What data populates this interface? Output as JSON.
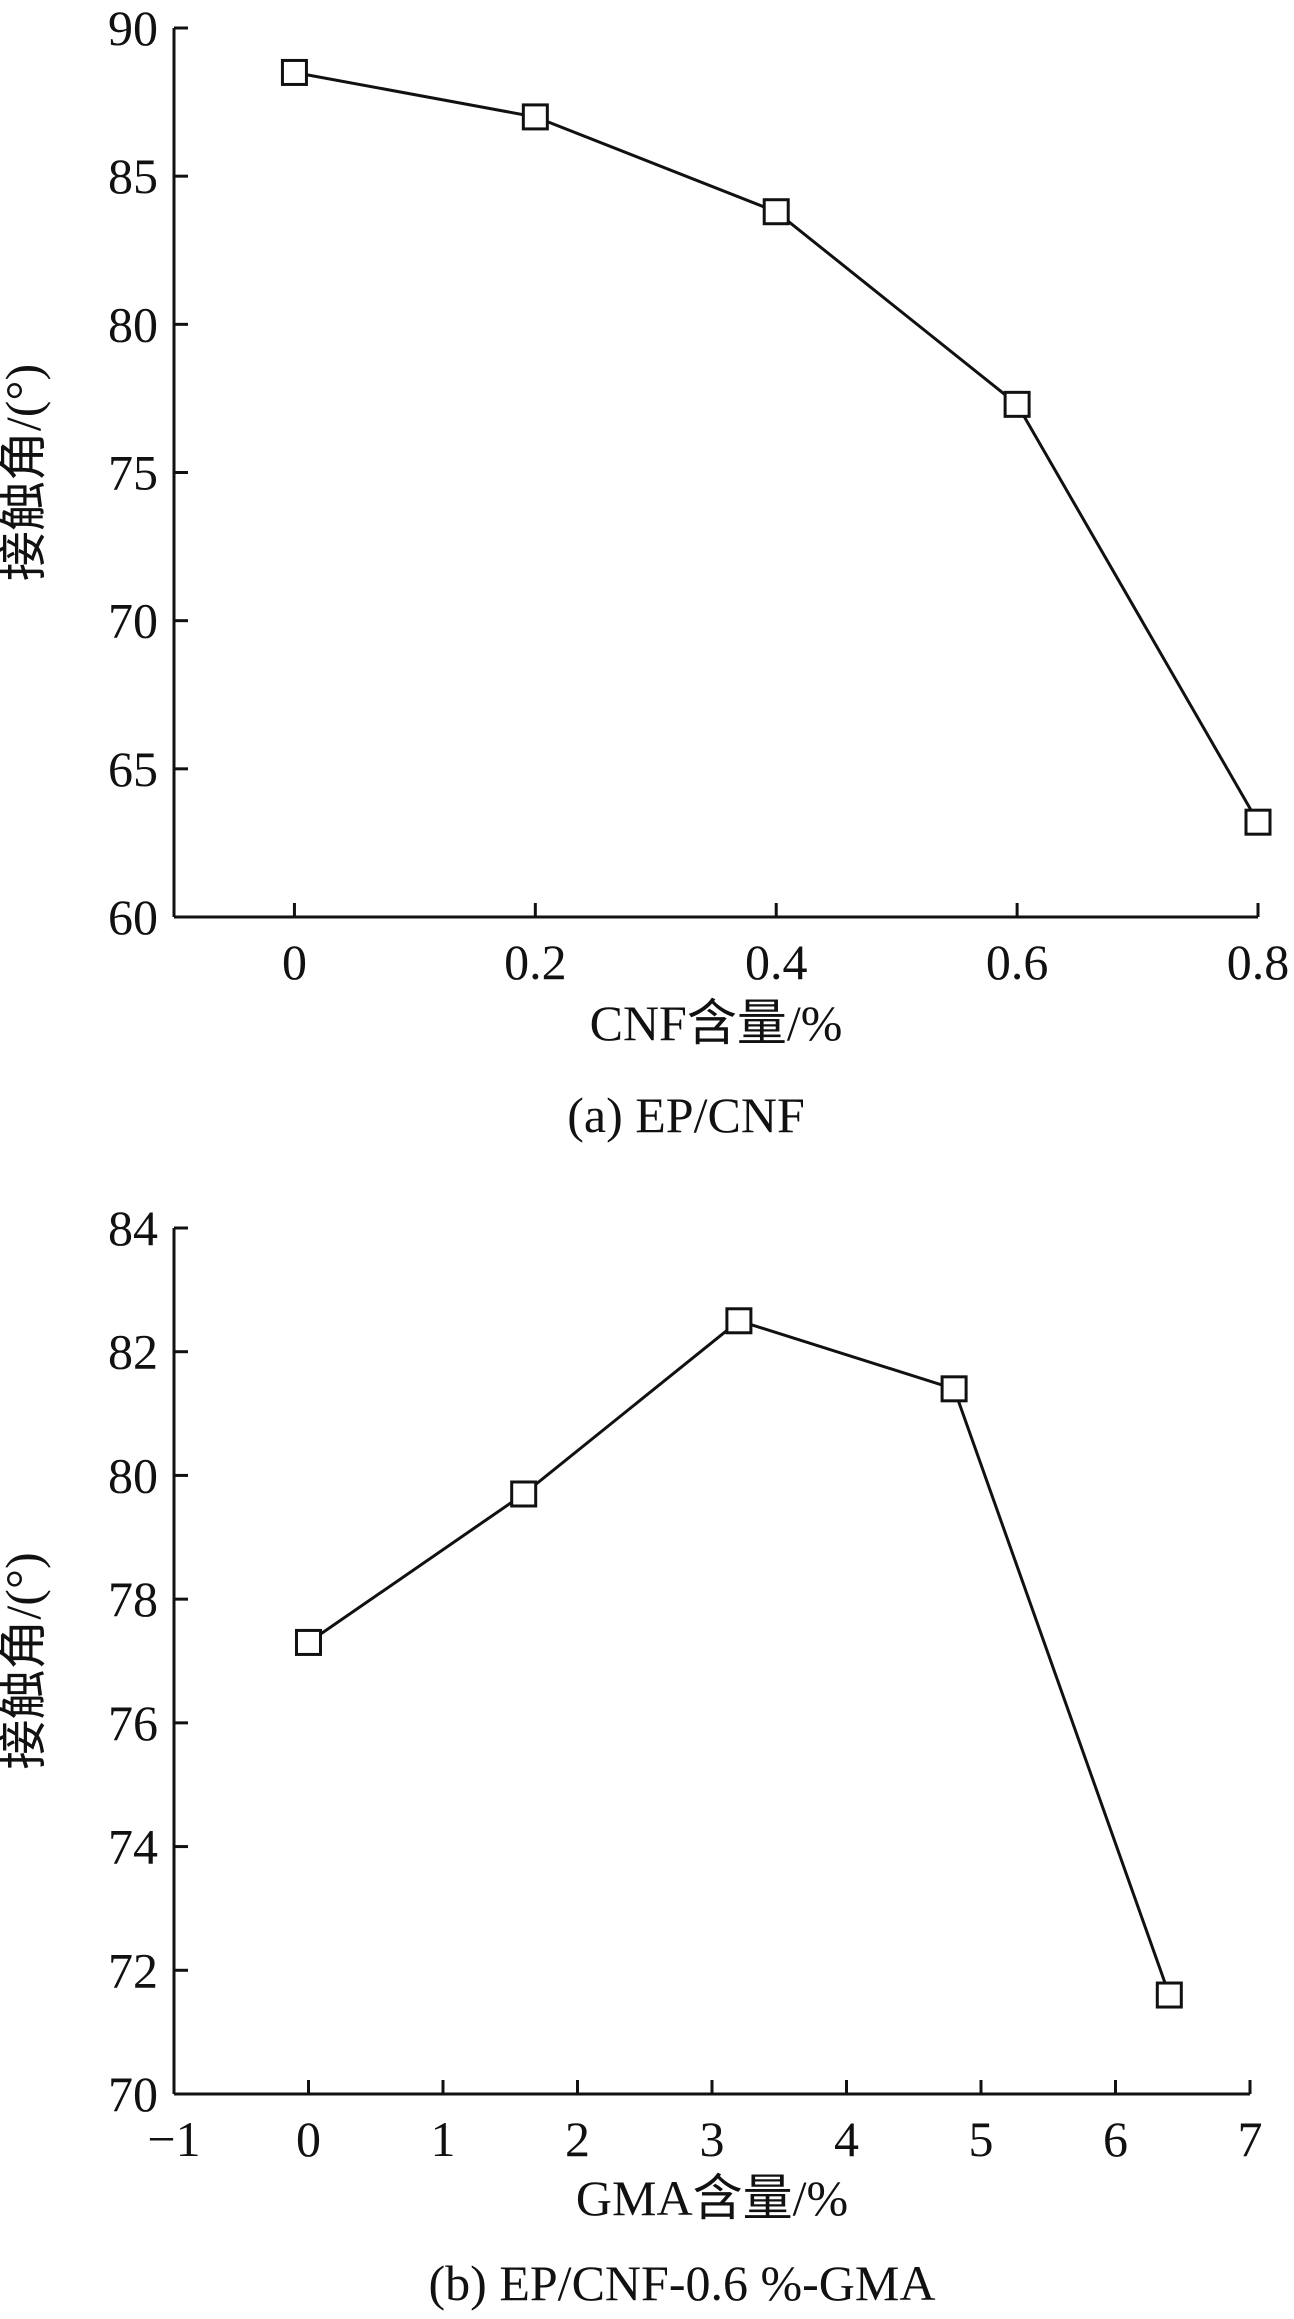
{
  "chart_data": [
    {
      "type": "line",
      "caption": "(a) EP/CNF",
      "xlabel": "CNF含量/%",
      "ylabel": "接触角/(°)",
      "xlim": [
        -0.1,
        0.8
      ],
      "ylim": [
        60,
        90
      ],
      "xticks": [
        0,
        0.2,
        0.4,
        0.6,
        0.8
      ],
      "xtick_labels": [
        "0",
        "0.2",
        "0.4",
        "0.6",
        "0.8"
      ],
      "yticks": [
        60,
        65,
        70,
        75,
        80,
        85,
        90
      ],
      "ytick_labels": [
        "60",
        "65",
        "70",
        "75",
        "80",
        "85",
        "90"
      ],
      "marker": "open-square",
      "grid": false,
      "series": [
        {
          "x": [
            0,
            0.2,
            0.4,
            0.6,
            0.8
          ],
          "y": [
            88.5,
            87.0,
            83.8,
            77.3,
            63.2
          ]
        }
      ]
    },
    {
      "type": "line",
      "caption": "(b) EP/CNF-0.6 %-GMA",
      "xlabel": "GMA含量/%",
      "ylabel": "接触角/(°)",
      "xlim": [
        -1,
        7
      ],
      "ylim": [
        70,
        84
      ],
      "xticks": [
        -1,
        0,
        1,
        2,
        3,
        4,
        5,
        6,
        7
      ],
      "xtick_labels": [
        "−1",
        "0",
        "1",
        "2",
        "3",
        "4",
        "5",
        "6",
        "7"
      ],
      "yticks": [
        70,
        72,
        74,
        76,
        78,
        80,
        82,
        84
      ],
      "ytick_labels": [
        "70",
        "72",
        "74",
        "76",
        "78",
        "80",
        "82",
        "84"
      ],
      "marker": "open-square",
      "grid": false,
      "series": [
        {
          "x": [
            0,
            1.6,
            3.2,
            4.8,
            6.4
          ],
          "y": [
            77.3,
            79.7,
            82.5,
            81.4,
            71.6
          ]
        }
      ]
    }
  ]
}
